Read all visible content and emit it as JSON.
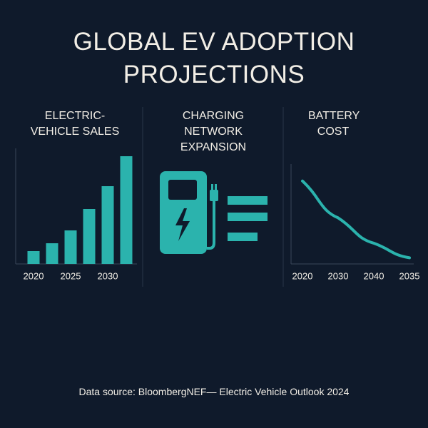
{
  "title": "GLOBAL EV ADOPTION PROJECTIONS",
  "chart_data": [
    {
      "type": "bar",
      "title": "ELECTRIC-VEHICLE SALES",
      "categories": [
        "2020",
        null,
        "2025",
        null,
        "2030",
        null
      ],
      "values": [
        18,
        29,
        47,
        77,
        109,
        151
      ],
      "color": "#2bb3ad",
      "ylim": [
        0,
        160
      ]
    },
    {
      "type": "icon",
      "title": "CHARGING NETWORK EXPANSION"
    },
    {
      "type": "line",
      "title": "BATTERY COST",
      "categories": [
        "2020",
        "2030",
        "2040",
        "2035"
      ],
      "values": [
        108,
        60,
        27,
        8
      ],
      "color": "#2bb3ad",
      "ylim": [
        0,
        130
      ]
    }
  ],
  "source": "Data source: BloombergNEF— Electric Vehicle Outlook 2024"
}
